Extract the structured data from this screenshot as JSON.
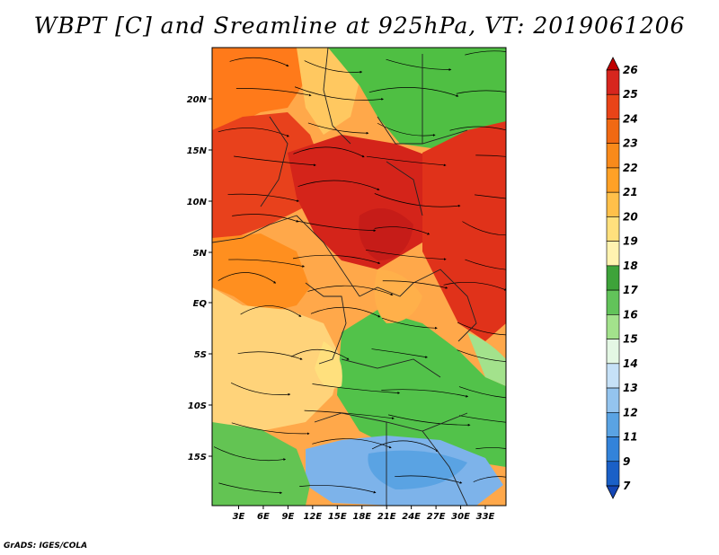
{
  "title": "WBPT [C] and Sreamline at 925hPa, VT: 2019061206",
  "credit": "GrADS: IGES/COLA",
  "map": {
    "x_ticks": [
      "3E",
      "6E",
      "9E",
      "12E",
      "15E",
      "18E",
      "21E",
      "24E",
      "27E",
      "30E",
      "33E"
    ],
    "y_ticks": [
      "20N",
      "15N",
      "10N",
      "5N",
      "EQ",
      "5S",
      "10S",
      "15S"
    ],
    "regions": [
      {
        "name": "north-coast-orange",
        "color": "#ff7a1a"
      },
      {
        "name": "west-sahel-red",
        "color": "#e8411c"
      },
      {
        "name": "central-sahel-red",
        "color": "#d4241a"
      },
      {
        "name": "east-sahel-red",
        "color": "#e0321a"
      },
      {
        "name": "gulf-guinea-orange",
        "color": "#ff8f1f"
      },
      {
        "name": "atlantic-south-tan",
        "color": "#ffd37a"
      },
      {
        "name": "congo-basin-green",
        "color": "#52c24a"
      },
      {
        "name": "southern-blue",
        "color": "#7db3ea"
      },
      {
        "name": "southwest-green",
        "color": "#63c453"
      },
      {
        "name": "northeast-green",
        "color": "#4fbf43"
      },
      {
        "name": "north-center-tan",
        "color": "#ffc860"
      }
    ]
  },
  "colorbar": {
    "levels": [
      "26",
      "25",
      "24",
      "23",
      "22",
      "21",
      "20",
      "19",
      "18",
      "17",
      "16",
      "15",
      "14",
      "13",
      "12",
      "11",
      "9",
      "7"
    ],
    "colors": [
      "#c00000",
      "#d7261e",
      "#e94418",
      "#f16913",
      "#f98a1a",
      "#ffa126",
      "#ffc04a",
      "#ffe07d",
      "#fff3b0",
      "#3ea33a",
      "#62c35a",
      "#a3e28c",
      "#e4f7e4",
      "#c6e1f7",
      "#94c4ee",
      "#5aa3e3",
      "#3383da",
      "#1a60c7",
      "#1446b5"
    ]
  }
}
